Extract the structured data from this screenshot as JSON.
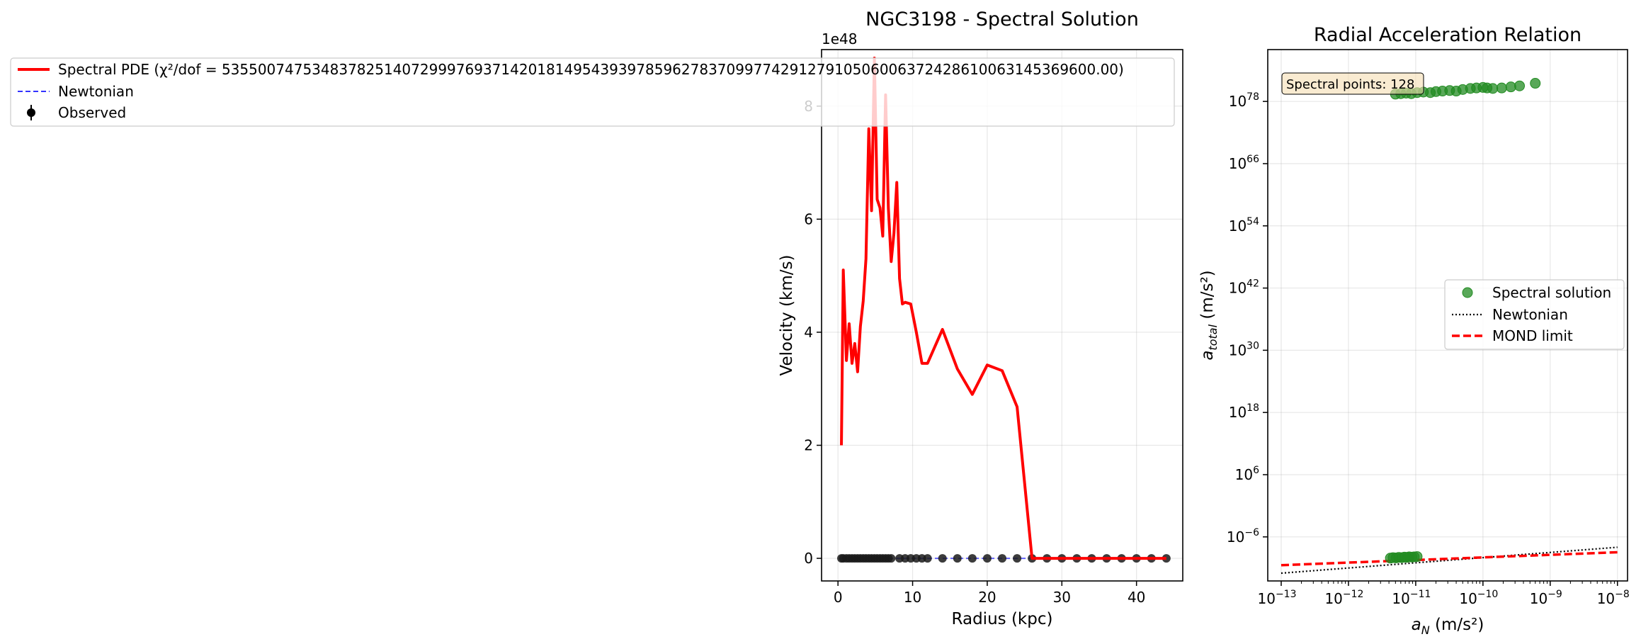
{
  "colors": {
    "spectral": "#ff0000",
    "newtonian": "#3333ff",
    "observed": "#000000",
    "spectral_points": "#228b22"
  },
  "chart_data": [
    {
      "type": "line",
      "title": "NGC3198 - Spectral Solution",
      "xlabel": "Radius (kpc)",
      "ylabel": "Velocity (km/s)",
      "y_multiplier": "1e48",
      "xlim": [
        -2.2,
        46.2
      ],
      "ylim": [
        -4e+47,
        9e+48
      ],
      "xticks": [
        0,
        10,
        20,
        30,
        40
      ],
      "yticks": [
        0,
        2e+48,
        4e+48,
        6e+48,
        8e+48
      ],
      "ytick_labels": [
        "0",
        "2",
        "4",
        "6",
        "8"
      ],
      "grid": true,
      "legend_placement": "upper-left, outside",
      "legend": [
        "Spectral PDE (χ²/dof = 5355007475348378251407299976937142018149543939785962783709977429127910506006372428610063145369600.00)",
        "Newtonian",
        "Observed"
      ],
      "series": [
        {
          "name": "Spectral PDE",
          "style": "solid",
          "x": [
            0.46,
            0.71,
            1.13,
            1.5,
            1.88,
            2.25,
            2.63,
            3.0,
            3.38,
            3.75,
            4.13,
            4.5,
            4.88,
            5.25,
            5.63,
            6.0,
            6.38,
            6.75,
            7.13,
            7.5,
            7.88,
            8.25,
            8.63,
            9.0,
            9.75,
            10.5,
            11.25,
            12.0,
            14.0,
            16.0,
            18.0,
            20.0,
            22.0,
            24.0,
            26.0,
            28.0,
            30.0,
            32.0,
            34.0,
            36.0,
            38.0,
            40.0,
            42.0,
            44.0
          ],
          "y": [
            2e+48,
            5.1e+48,
            3.5e+48,
            4.15e+48,
            3.45e+48,
            3.8e+48,
            3.3e+48,
            4.1e+48,
            4.55e+48,
            5.3e+48,
            7.6e+48,
            6.15e+48,
            8.85e+48,
            6.35e+48,
            6.2e+48,
            5.7e+48,
            8.2e+48,
            6.2e+48,
            5.25e+48,
            5.75e+48,
            6.65e+48,
            4.95e+48,
            4.5e+48,
            4.53e+48,
            4.5e+48,
            4e+48,
            3.45e+48,
            3.45e+48,
            4.05e+48,
            3.35e+48,
            2.9e+48,
            3.42e+48,
            3.32e+48,
            2.68e+48,
            0.0,
            0.0,
            0.0,
            0.0,
            0.0,
            0.0,
            0.0,
            0.0,
            0.0,
            0.0
          ]
        },
        {
          "name": "Newtonian",
          "style": "dashed",
          "x": [
            0.46,
            44.0
          ],
          "y": [
            0.0,
            0.0
          ]
        },
        {
          "name": "Observed",
          "style": "markers",
          "x": [
            0.46,
            0.71,
            1.13,
            1.5,
            1.88,
            2.25,
            2.63,
            3.0,
            3.38,
            3.75,
            4.13,
            4.5,
            4.88,
            5.25,
            5.63,
            6.0,
            6.38,
            6.75,
            7.13,
            8.25,
            9.0,
            9.75,
            10.5,
            11.25,
            12.0,
            14.0,
            16.0,
            18.0,
            20.0,
            22.0,
            24.0,
            26.0,
            28.0,
            30.0,
            32.0,
            34.0,
            36.0,
            38.0,
            40.0,
            42.0,
            44.0
          ],
          "y": [
            0,
            0,
            0,
            0,
            0,
            0,
            0,
            0,
            0,
            0,
            0,
            0,
            0,
            0,
            0,
            0,
            0,
            0,
            0,
            0,
            0,
            0,
            0,
            0,
            0,
            0,
            0,
            0,
            0,
            0,
            0,
            0,
            0,
            0,
            0,
            0,
            0,
            0,
            0,
            0,
            0
          ]
        }
      ]
    },
    {
      "type": "scatter",
      "title": "Radial Acceleration Relation",
      "xlabel_base": "a",
      "xlabel_sub": "N",
      "xlabel_unit": " (m/s²)",
      "ylabel_base": "a",
      "ylabel_sub": "total",
      "ylabel_unit": " (m/s²)",
      "xscale": "log",
      "yscale": "log",
      "xlim_log10": [
        -13.2,
        -7.85
      ],
      "ylim_log10": [
        -14.5,
        88
      ],
      "xticks": [
        1e-13,
        1e-12,
        1e-11,
        1e-10,
        1e-09,
        1e-08
      ],
      "xtick_exp": [
        "−13",
        "−12",
        "−11",
        "−10",
        "−9",
        "−8"
      ],
      "yticks_log10": [
        -6,
        6,
        18,
        30,
        42,
        54,
        66,
        78
      ],
      "ytick_exp": [
        "−6",
        "6",
        "18",
        "30",
        "42",
        "54",
        "66",
        "78"
      ],
      "grid": true,
      "legend_placement": "center-right",
      "legend": [
        "Spectral solution",
        "Newtonian",
        "MOND limit"
      ],
      "annotation": "Spectral points: 128",
      "series": [
        {
          "name": "Spectral solution",
          "style": "markers",
          "points": [
            {
              "x": 5e-12,
              "y_log10": 79.4
            },
            {
              "x": 6e-12,
              "y_log10": 79.5
            },
            {
              "x": 7.2e-12,
              "y_log10": 79.6
            },
            {
              "x": 8.6e-12,
              "y_log10": 79.5
            },
            {
              "x": 1.05e-11,
              "y_log10": 79.7
            },
            {
              "x": 1.3e-11,
              "y_log10": 79.8
            },
            {
              "x": 1.65e-11,
              "y_log10": 79.7
            },
            {
              "x": 2e-11,
              "y_log10": 79.9
            },
            {
              "x": 2.5e-11,
              "y_log10": 80.0
            },
            {
              "x": 3.2e-11,
              "y_log10": 80.1
            },
            {
              "x": 4e-11,
              "y_log10": 80.0
            },
            {
              "x": 5e-11,
              "y_log10": 80.3
            },
            {
              "x": 6.5e-11,
              "y_log10": 80.5
            },
            {
              "x": 8e-11,
              "y_log10": 80.6
            },
            {
              "x": 1e-10,
              "y_log10": 80.7
            },
            {
              "x": 1.15e-10,
              "y_log10": 80.6
            },
            {
              "x": 1.4e-10,
              "y_log10": 80.5
            },
            {
              "x": 1.9e-10,
              "y_log10": 80.6
            },
            {
              "x": 2.6e-10,
              "y_log10": 80.8
            },
            {
              "x": 3.5e-10,
              "y_log10": 81.0
            },
            {
              "x": 6e-10,
              "y_log10": 81.5
            },
            {
              "x": 4.2e-12,
              "y_log10": -10.1
            },
            {
              "x": 4.6e-12,
              "y_log10": -10.0
            },
            {
              "x": 5.1e-12,
              "y_log10": -10.05
            },
            {
              "x": 5.6e-12,
              "y_log10": -9.95
            },
            {
              "x": 6.2e-12,
              "y_log10": -10.0
            },
            {
              "x": 6.8e-12,
              "y_log10": -9.9
            },
            {
              "x": 7.4e-12,
              "y_log10": -9.95
            },
            {
              "x": 8e-12,
              "y_log10": -9.85
            },
            {
              "x": 8.8e-12,
              "y_log10": -9.9
            },
            {
              "x": 9.5e-12,
              "y_log10": -9.85
            },
            {
              "x": 1.05e-11,
              "y_log10": -9.8
            }
          ]
        },
        {
          "name": "Newtonian",
          "style": "dotted",
          "x": [
            1e-13,
            1e-08
          ],
          "y_log10": [
            -13,
            -8
          ]
        },
        {
          "name": "MOND limit",
          "style": "dashed",
          "x": [
            1e-13,
            1e-08
          ],
          "y_log10": [
            -11.46,
            -8.96
          ]
        }
      ]
    }
  ]
}
